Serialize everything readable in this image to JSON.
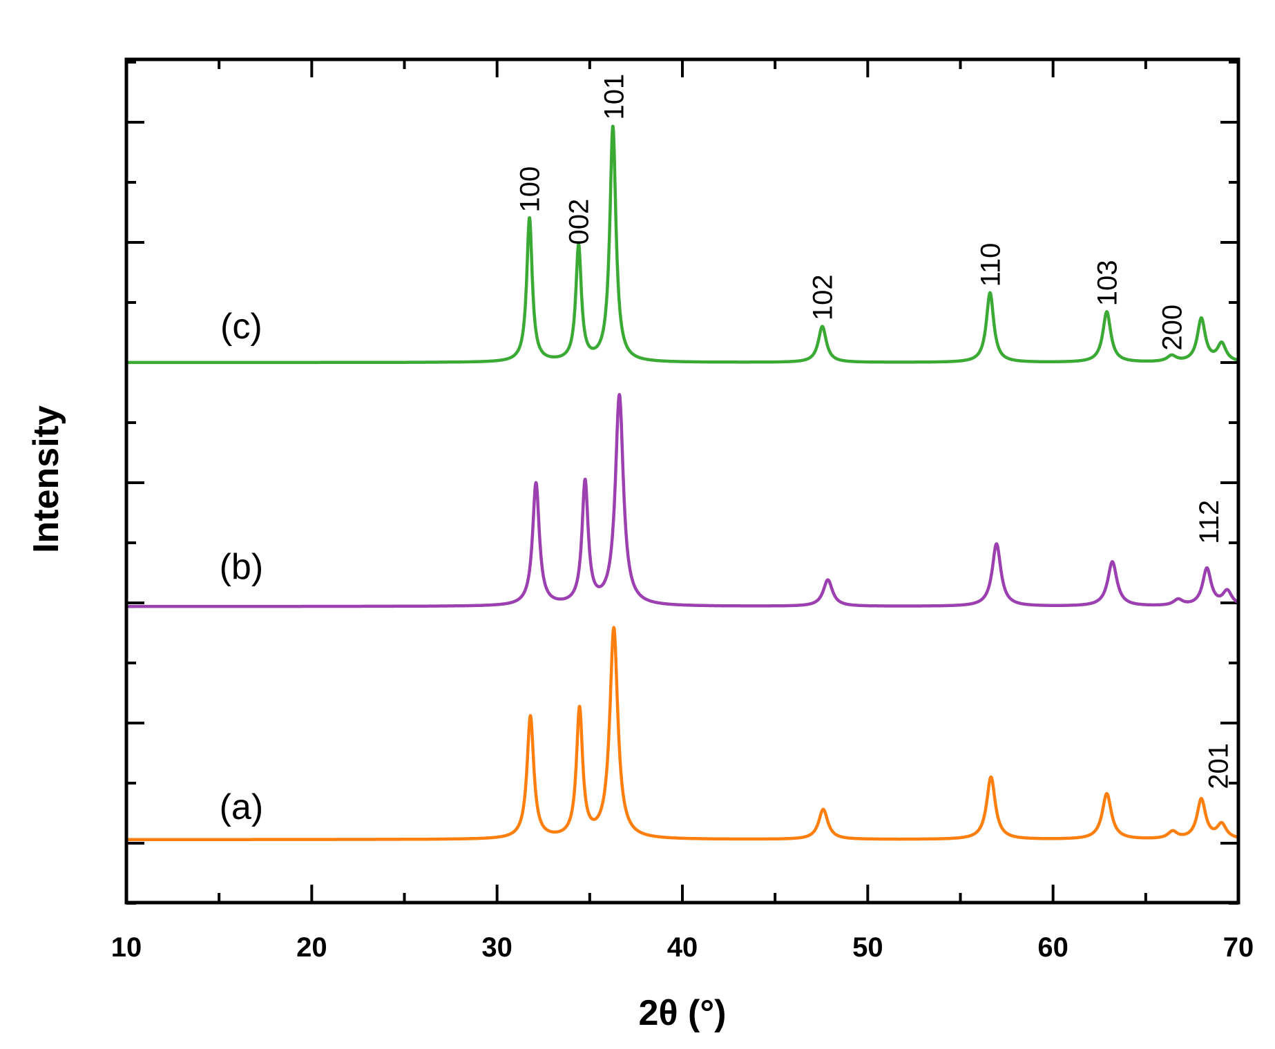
{
  "chart_data": {
    "type": "line",
    "title": "",
    "xlabel": "2θ (°)",
    "ylabel": "Intensity",
    "xlim": [
      10,
      70
    ],
    "x_ticks": [
      "10",
      "20",
      "30",
      "40",
      "50",
      "60",
      "70"
    ],
    "grid": false,
    "legend": "none",
    "series": [
      {
        "label": "(a)",
        "color": "#ff7f0e",
        "offset": 0,
        "baseline": 0.03,
        "peaks": [
          {
            "x": 31.8,
            "h": 1.02,
            "w": 0.22
          },
          {
            "x": 34.45,
            "h": 1.07,
            "w": 0.2
          },
          {
            "x": 36.3,
            "h": 1.75,
            "w": 0.26
          },
          {
            "x": 47.6,
            "h": 0.25,
            "w": 0.3
          },
          {
            "x": 56.65,
            "h": 0.52,
            "w": 0.28
          },
          {
            "x": 62.9,
            "h": 0.38,
            "w": 0.3
          },
          {
            "x": 66.45,
            "h": 0.06,
            "w": 0.3
          },
          {
            "x": 68.0,
            "h": 0.33,
            "w": 0.28
          },
          {
            "x": 69.1,
            "h": 0.12,
            "w": 0.3
          }
        ]
      },
      {
        "label": "(b)",
        "color": "#9c3fb0",
        "offset": 2,
        "baseline": -0.03,
        "peaks": [
          {
            "x": 32.1,
            "h": 1.02,
            "w": 0.22
          },
          {
            "x": 34.75,
            "h": 1.02,
            "w": 0.2
          },
          {
            "x": 36.6,
            "h": 1.75,
            "w": 0.26
          },
          {
            "x": 47.85,
            "h": 0.22,
            "w": 0.3
          },
          {
            "x": 56.95,
            "h": 0.52,
            "w": 0.28
          },
          {
            "x": 63.2,
            "h": 0.37,
            "w": 0.3
          },
          {
            "x": 66.75,
            "h": 0.05,
            "w": 0.3
          },
          {
            "x": 68.3,
            "h": 0.31,
            "w": 0.28
          },
          {
            "x": 69.4,
            "h": 0.12,
            "w": 0.3
          }
        ]
      },
      {
        "label": "(c)",
        "color": "#3aaa35",
        "offset": 4,
        "baseline": 0,
        "peaks": [
          {
            "x": 31.75,
            "h": 1.2,
            "w": 0.18
          },
          {
            "x": 34.4,
            "h": 0.96,
            "w": 0.18
          },
          {
            "x": 36.25,
            "h": 1.96,
            "w": 0.2
          },
          {
            "x": 47.55,
            "h": 0.3,
            "w": 0.26
          },
          {
            "x": 56.6,
            "h": 0.58,
            "w": 0.24
          },
          {
            "x": 62.9,
            "h": 0.42,
            "w": 0.26
          },
          {
            "x": 66.4,
            "h": 0.05,
            "w": 0.3
          },
          {
            "x": 68.0,
            "h": 0.36,
            "w": 0.26
          },
          {
            "x": 69.1,
            "h": 0.15,
            "w": 0.28
          }
        ]
      }
    ],
    "annotations": [
      {
        "text": "100",
        "x": 31.75,
        "y": 5.25
      },
      {
        "text": "002",
        "x": 34.4,
        "y": 4.98
      },
      {
        "text": "101",
        "x": 36.3,
        "y": 6.02
      },
      {
        "text": "102",
        "x": 47.55,
        "y": 4.35
      },
      {
        "text": "110",
        "x": 56.6,
        "y": 4.63
      },
      {
        "text": "103",
        "x": 62.9,
        "y": 4.47
      },
      {
        "text": "200",
        "x": 66.4,
        "y": 4.1
      },
      {
        "text": "112",
        "x": 68.4,
        "y": 2.49
      },
      {
        "text": "201",
        "x": 68.9,
        "y": 0.45
      }
    ]
  }
}
